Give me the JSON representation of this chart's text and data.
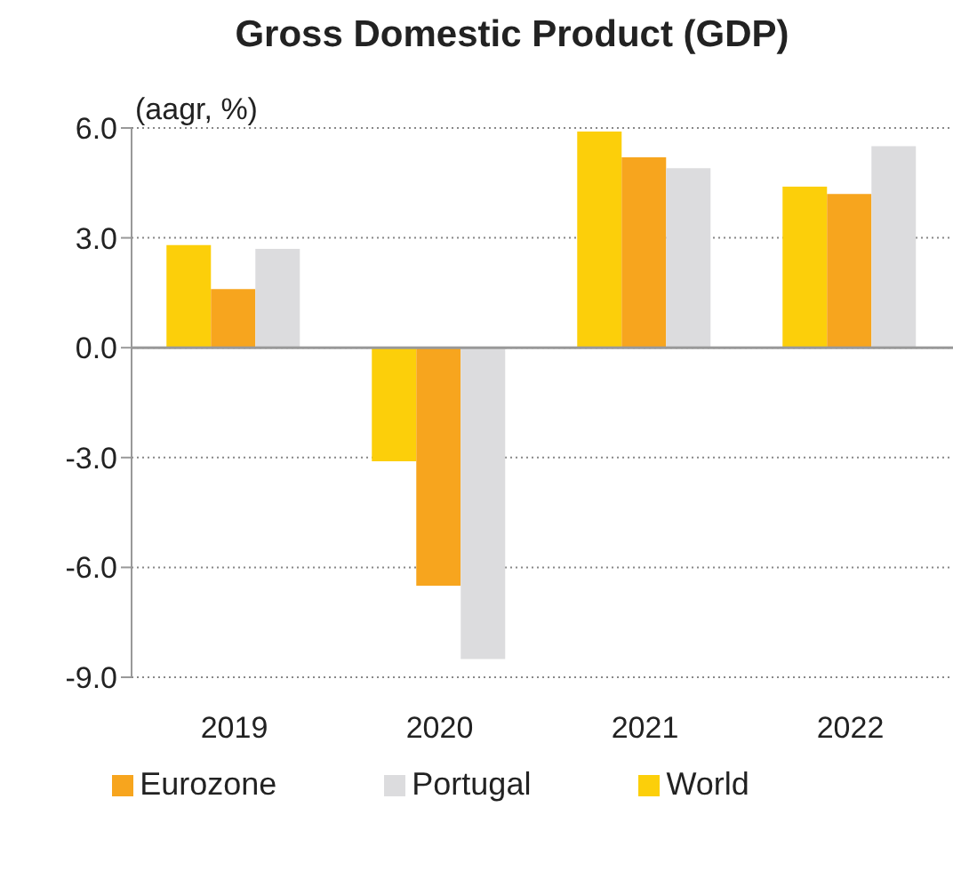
{
  "chart_data": {
    "type": "bar",
    "title": "Gross Domestic Product (GDP)",
    "ylabel": "(aagr, %)",
    "categories": [
      "2019",
      "2020",
      "2021",
      "2022"
    ],
    "series": [
      {
        "name": "World",
        "color": "#fccf0a",
        "values": [
          2.8,
          -3.1,
          5.9,
          4.4
        ]
      },
      {
        "name": "Eurozone",
        "color": "#f7a51e",
        "values": [
          1.6,
          -6.5,
          5.2,
          4.2
        ]
      },
      {
        "name": "Portugal",
        "color": "#dcdcde",
        "values": [
          2.7,
          -8.5,
          4.9,
          5.5
        ]
      }
    ],
    "ylim": [
      -9,
      6
    ],
    "yticks": [
      {
        "value": -9,
        "label": "-9.0"
      },
      {
        "value": -6,
        "label": "-6.0"
      },
      {
        "value": -3,
        "label": "-3.0"
      },
      {
        "value": 0,
        "label": "0.0"
      },
      {
        "value": 3,
        "label": "3.0"
      },
      {
        "value": 6,
        "label": "6.0"
      }
    ],
    "grid": "y",
    "legend": "bottom"
  }
}
